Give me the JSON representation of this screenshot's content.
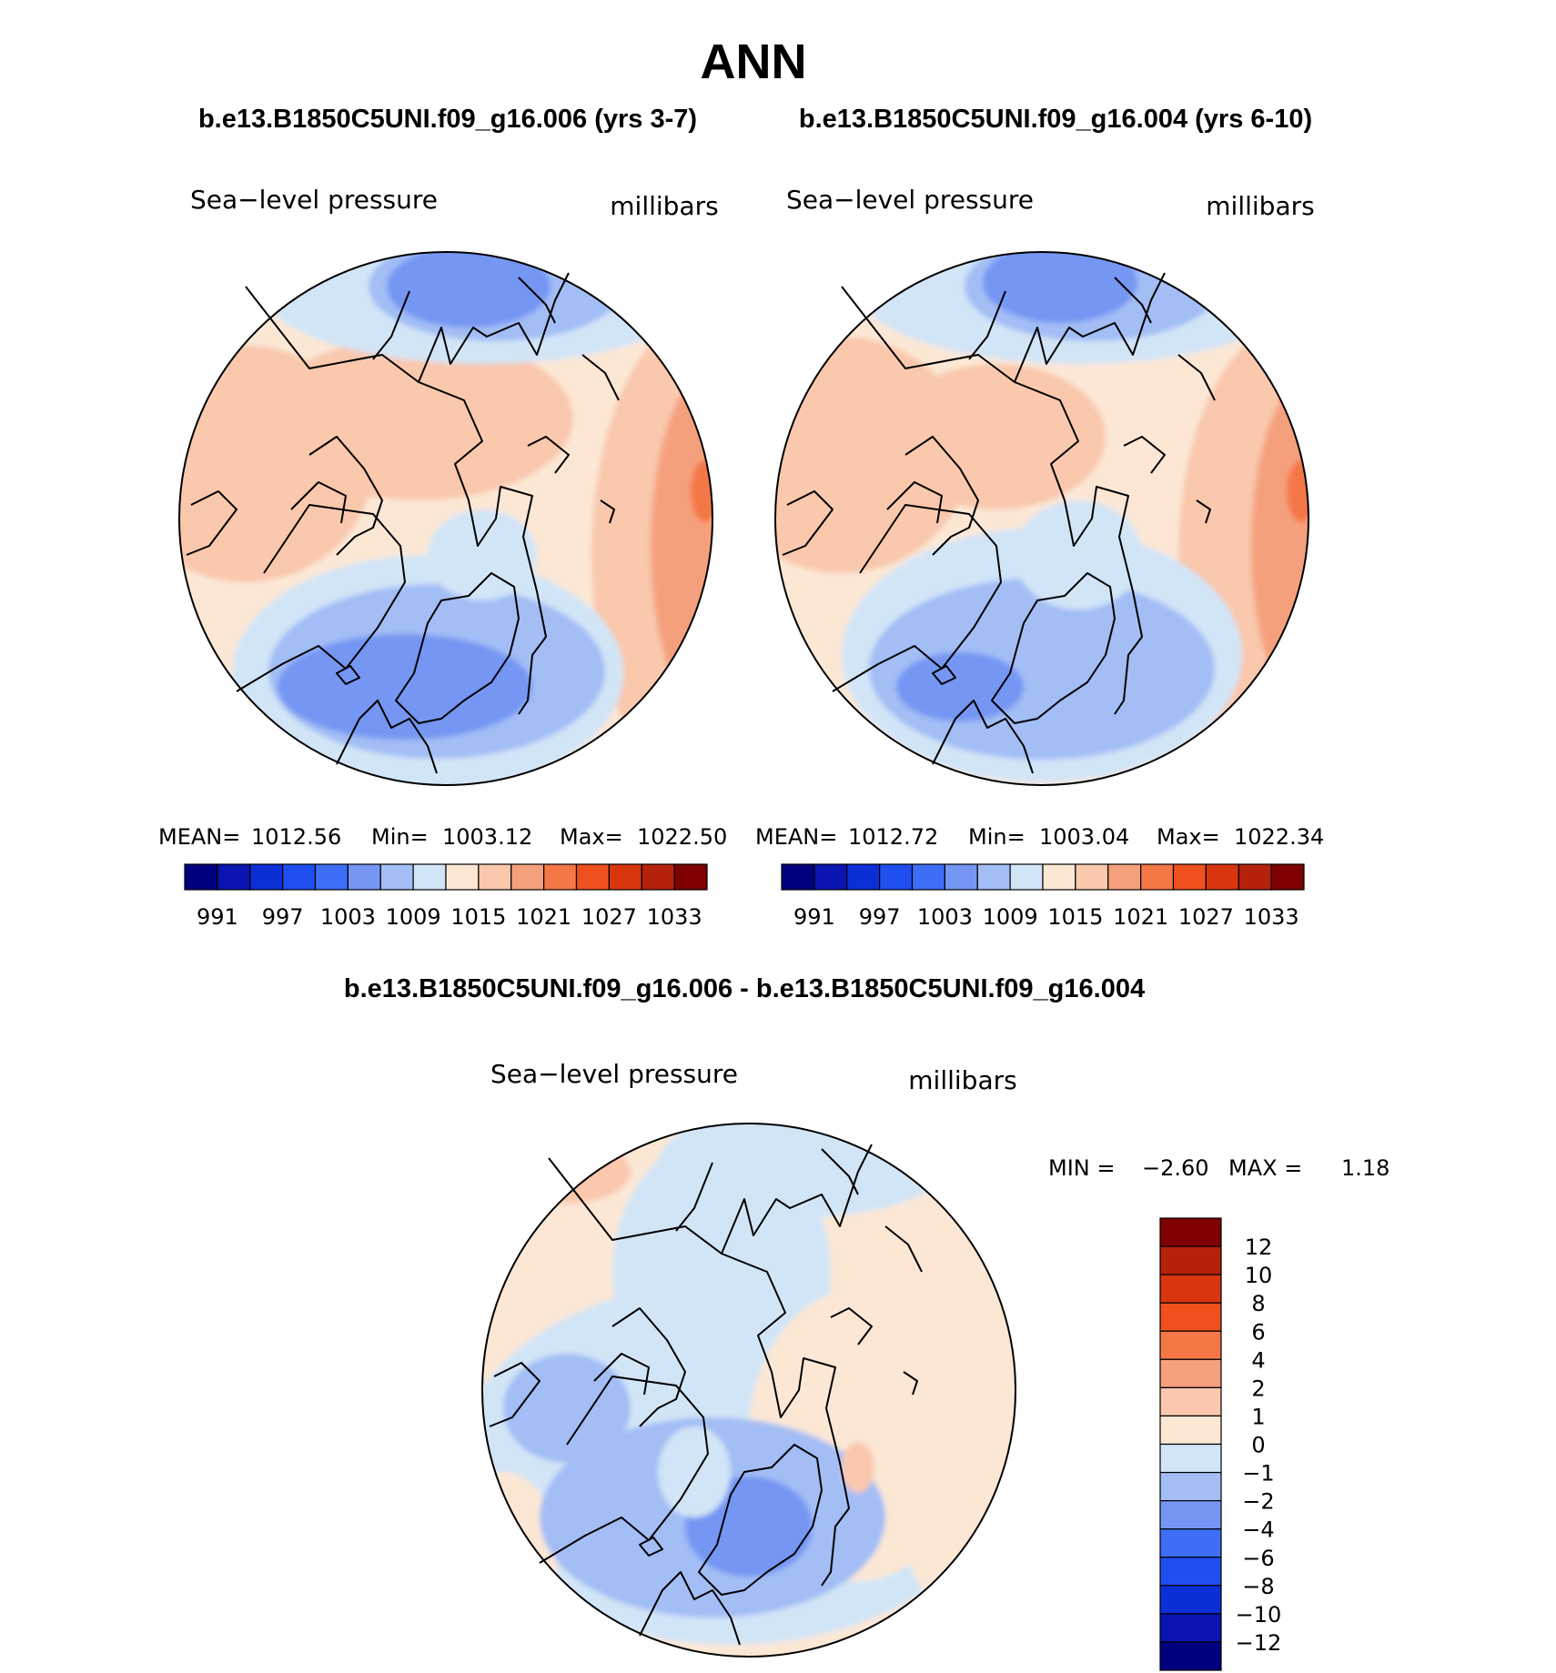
{
  "figure": {
    "title": "ANN",
    "diff_title": "b.e13.B1850C5UNI.f09_g16.006 - b.e13.B1850C5UNI.f09_g16.004"
  },
  "colors": {
    "abs_scale": [
      "#00007f",
      "#0a14b0",
      "#0b2ed6",
      "#1f4ff0",
      "#3d6ef5",
      "#7596f3",
      "#a3bdf5",
      "#d2e5f7",
      "#fce7d5",
      "#f9c8ad",
      "#f5a07d",
      "#f47746",
      "#f0501e",
      "#d93610",
      "#b5210a",
      "#7f0000"
    ],
    "diff_scale": [
      "#00007f",
      "#0a14b0",
      "#0b2ed6",
      "#1f4ff0",
      "#3d6ef5",
      "#7596f3",
      "#a3bdf5",
      "#d2e5f7",
      "#fce7d5",
      "#f9c8ad",
      "#f5a07d",
      "#f47746",
      "#f0501e",
      "#d93610",
      "#b5210a",
      "#7f0000"
    ]
  },
  "panels": [
    {
      "case_title": "b.e13.B1850C5UNI.f09_g16.006 (yrs 3-7)",
      "var_label": "Sea−level pressure",
      "units": "millibars",
      "stats": {
        "mean_label": "MEAN=",
        "mean": "1012.56",
        "min_label": "Min=",
        "min": "1003.12",
        "max_label": "Max=",
        "max": "1022.50"
      },
      "colorbar_ticks": [
        "991",
        "997",
        "1003",
        "1009",
        "1015",
        "1021",
        "1027",
        "1033"
      ]
    },
    {
      "case_title": "b.e13.B1850C5UNI.f09_g16.004 (yrs 6-10)",
      "var_label": "Sea−level pressure",
      "units": "millibars",
      "stats": {
        "mean_label": "MEAN=",
        "mean": "1012.72",
        "min_label": "Min=",
        "min": "1003.04",
        "max_label": "Max=",
        "max": "1022.34"
      },
      "colorbar_ticks": [
        "991",
        "997",
        "1003",
        "1009",
        "1015",
        "1021",
        "1027",
        "1033"
      ]
    }
  ],
  "diff_panel": {
    "var_label": "Sea−level pressure",
    "units": "millibars",
    "stats": {
      "min_label": "MIN =",
      "min": "−2.60",
      "max_label": "MAX =",
      "max": "1.18"
    },
    "colorbar_ticks": [
      "12",
      "10",
      "8",
      "6",
      "4",
      "2",
      "1",
      "0",
      "−1",
      "−2",
      "−4",
      "−6",
      "−8",
      "−10",
      "−12"
    ]
  },
  "chart_data": [
    {
      "type": "heatmap",
      "title": "b.e13.B1850C5UNI.f09_g16.006 (yrs 3-7)",
      "projection": "north-polar-stereographic",
      "variable": "Sea−level pressure",
      "units": "millibars",
      "mean": 1012.56,
      "min": 1003.12,
      "max": 1022.5,
      "levels": [
        991,
        994,
        997,
        1000,
        1003,
        1006,
        1009,
        1012,
        1015,
        1018,
        1021,
        1024,
        1027,
        1030,
        1033
      ]
    },
    {
      "type": "heatmap",
      "title": "b.e13.B1850C5UNI.f09_g16.004 (yrs 6-10)",
      "projection": "north-polar-stereographic",
      "variable": "Sea−level pressure",
      "units": "millibars",
      "mean": 1012.72,
      "min": 1003.04,
      "max": 1022.34,
      "levels": [
        991,
        994,
        997,
        1000,
        1003,
        1006,
        1009,
        1012,
        1015,
        1018,
        1021,
        1024,
        1027,
        1030,
        1033
      ]
    },
    {
      "type": "heatmap",
      "title": "b.e13.B1850C5UNI.f09_g16.006 - b.e13.B1850C5UNI.f09_g16.004",
      "projection": "north-polar-stereographic",
      "variable": "Sea−level pressure",
      "units": "millibars",
      "min": -2.6,
      "max": 1.18,
      "levels": [
        -12,
        -10,
        -8,
        -6,
        -4,
        -2,
        -1,
        0,
        1,
        2,
        4,
        6,
        8,
        10,
        12
      ]
    }
  ]
}
